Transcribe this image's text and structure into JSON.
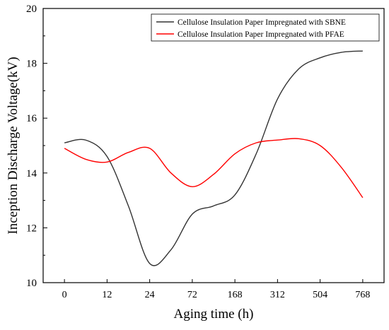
{
  "chart_data": {
    "type": "line",
    "title": "",
    "xlabel": "Aging time (h)",
    "ylabel": "Inception Discharge Voltage(kV)",
    "categories": [
      "0",
      "12",
      "24",
      "72",
      "168",
      "312",
      "504",
      "768"
    ],
    "x_range": [
      -0.5,
      7.5
    ],
    "ylim": [
      10,
      20
    ],
    "yticks": [
      10,
      12,
      14,
      16,
      18,
      20
    ],
    "grid": false,
    "legend_position": "top-right",
    "series": [
      {
        "name": "Cellulose Insulation Paper Impregnated with SBNE",
        "color": "#333333",
        "x": [
          0,
          0.5,
          1,
          1.5,
          2,
          2.5,
          3,
          3.5,
          4,
          4.5,
          5,
          5.5,
          6,
          6.5,
          7
        ],
        "values": [
          15.1,
          15.2,
          14.6,
          12.8,
          10.7,
          11.2,
          12.5,
          12.8,
          13.2,
          14.7,
          16.7,
          17.8,
          18.2,
          18.4,
          18.45
        ]
      },
      {
        "name": "Cellulose Insulation Paper Impregnated with PFAE",
        "color": "#ff0000",
        "x": [
          0,
          0.5,
          1,
          1.5,
          2,
          2.5,
          3,
          3.5,
          4,
          4.5,
          5,
          5.5,
          6,
          6.5,
          7
        ],
        "values": [
          14.9,
          14.5,
          14.4,
          14.75,
          14.9,
          14.0,
          13.5,
          13.95,
          14.7,
          15.1,
          15.2,
          15.25,
          15.0,
          14.2,
          13.1
        ]
      }
    ]
  }
}
